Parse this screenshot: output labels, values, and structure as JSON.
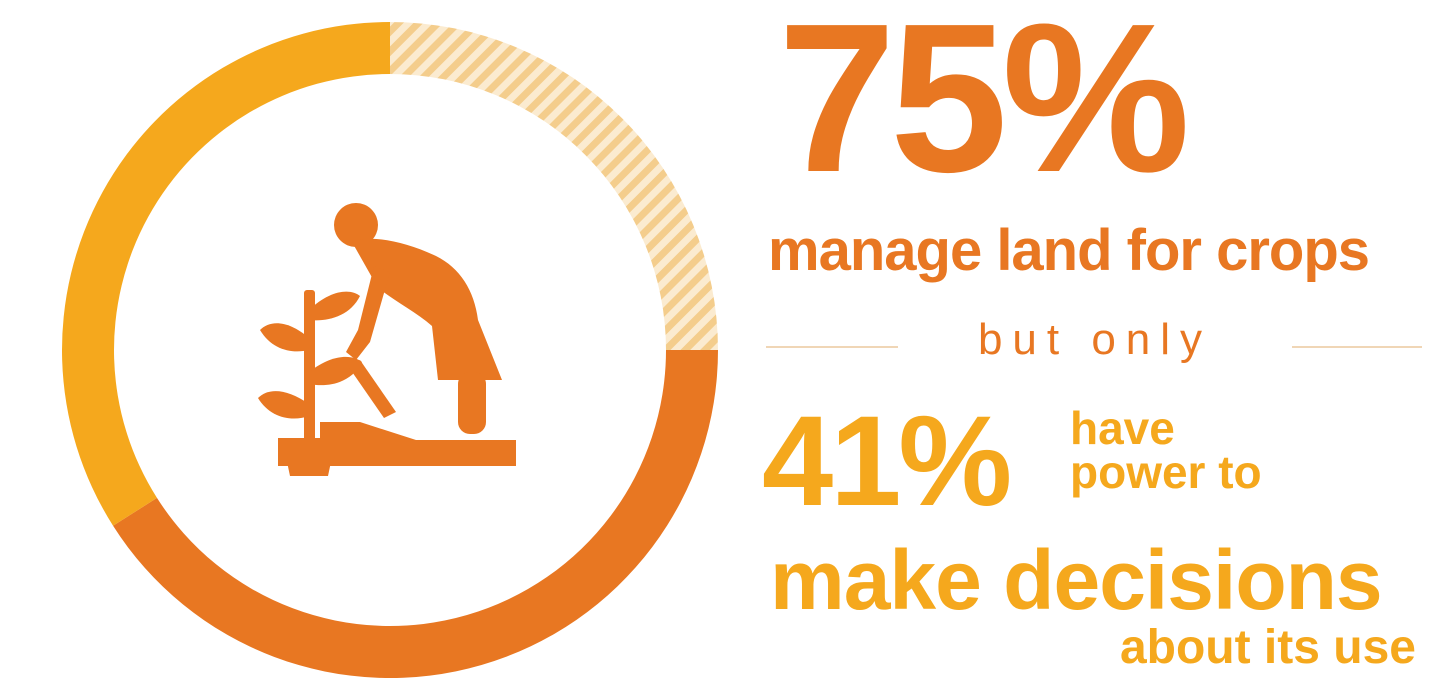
{
  "colors": {
    "orange": "#E87722",
    "gold": "#F5A81D",
    "hatch": "#F7D8A3",
    "divider": "#F0D6B6"
  },
  "icon": "woman-farming-icon",
  "headline": {
    "primary_value": "75%",
    "primary_text": "manage land for crops",
    "connector": "but only",
    "secondary_value": "41%",
    "secondary_text_a": "have",
    "secondary_text_b": "power to",
    "secondary_text_c": "make decisions",
    "secondary_text_d": "about its use"
  },
  "chart_data": {
    "type": "pie",
    "style": "donut",
    "series": [
      {
        "value": 41,
        "color": "#E87722"
      },
      {
        "value": 34,
        "color": "#F5A81D"
      },
      {
        "value": 25,
        "color": "#F7D8A3",
        "pattern": "hatched"
      }
    ]
  }
}
